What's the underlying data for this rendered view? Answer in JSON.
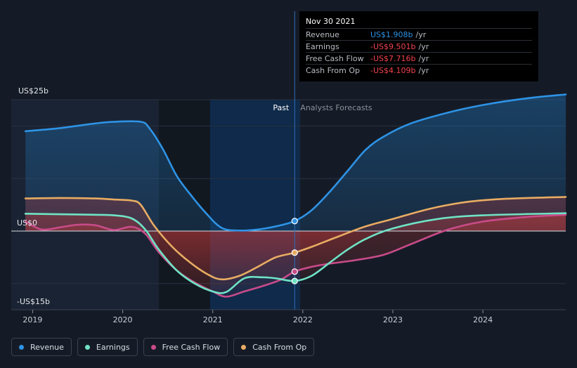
{
  "chart_data": {
    "type": "line",
    "y_axis": {
      "top_label": "US$25b",
      "zero_label": "US$0",
      "bottom_label": "-US$15b",
      "ylim": [
        -15,
        25
      ]
    },
    "x_ticks": [
      "2019",
      "2020",
      "2021",
      "2022",
      "2023",
      "2024"
    ],
    "period_labels": {
      "past": "Past",
      "forecast": "Analysts Forecasts"
    },
    "forecast_start": 2021.91,
    "series": [
      {
        "name": "Revenue",
        "color": "#2e93e5",
        "points": [
          [
            2018.92,
            19.0
          ],
          [
            2019.3,
            19.6
          ],
          [
            2019.7,
            20.5
          ],
          [
            2019.9,
            20.8
          ],
          [
            2020.2,
            20.8
          ],
          [
            2020.3,
            19.5
          ],
          [
            2020.45,
            15.5
          ],
          [
            2020.6,
            10.5
          ],
          [
            2020.75,
            7.0
          ],
          [
            2020.92,
            3.5
          ],
          [
            2021.1,
            0.6
          ],
          [
            2021.3,
            0.1
          ],
          [
            2021.5,
            0.3
          ],
          [
            2021.7,
            0.9
          ],
          [
            2021.91,
            1.908
          ],
          [
            2022.1,
            4.0
          ],
          [
            2022.3,
            7.5
          ],
          [
            2022.5,
            11.5
          ],
          [
            2022.7,
            15.5
          ],
          [
            2022.9,
            18.0
          ],
          [
            2023.2,
            20.5
          ],
          [
            2023.6,
            22.5
          ],
          [
            2024.0,
            24.0
          ],
          [
            2024.5,
            25.3
          ],
          [
            2024.92,
            26.0
          ]
        ]
      },
      {
        "name": "Earnings",
        "color": "#6fe3c5",
        "points": [
          [
            2018.92,
            3.3
          ],
          [
            2019.3,
            3.2
          ],
          [
            2019.7,
            3.1
          ],
          [
            2019.9,
            3.0
          ],
          [
            2020.1,
            2.4
          ],
          [
            2020.25,
            0.3
          ],
          [
            2020.4,
            -3.5
          ],
          [
            2020.6,
            -7.5
          ],
          [
            2020.8,
            -10.0
          ],
          [
            2021.0,
            -11.5
          ],
          [
            2021.15,
            -11.6
          ],
          [
            2021.35,
            -9.0
          ],
          [
            2021.55,
            -8.8
          ],
          [
            2021.7,
            -9.0
          ],
          [
            2021.91,
            -9.501
          ],
          [
            2022.1,
            -8.5
          ],
          [
            2022.3,
            -6.0
          ],
          [
            2022.5,
            -3.5
          ],
          [
            2022.7,
            -1.5
          ],
          [
            2023.0,
            0.5
          ],
          [
            2023.5,
            2.3
          ],
          [
            2024.0,
            3.0
          ],
          [
            2024.92,
            3.4
          ]
        ]
      },
      {
        "name": "Free Cash Flow",
        "color": "#c94b8a",
        "points": [
          [
            2018.92,
            1.8
          ],
          [
            2019.1,
            0.3
          ],
          [
            2019.3,
            0.7
          ],
          [
            2019.5,
            1.2
          ],
          [
            2019.7,
            1.1
          ],
          [
            2019.9,
            0.2
          ],
          [
            2020.1,
            0.8
          ],
          [
            2020.25,
            -0.5
          ],
          [
            2020.4,
            -4.0
          ],
          [
            2020.6,
            -7.5
          ],
          [
            2020.8,
            -9.8
          ],
          [
            2021.0,
            -11.5
          ],
          [
            2021.15,
            -12.5
          ],
          [
            2021.35,
            -11.5
          ],
          [
            2021.55,
            -10.5
          ],
          [
            2021.75,
            -9.3
          ],
          [
            2021.91,
            -7.716
          ],
          [
            2022.1,
            -6.8
          ],
          [
            2022.3,
            -6.2
          ],
          [
            2022.6,
            -5.5
          ],
          [
            2022.9,
            -4.5
          ],
          [
            2023.2,
            -2.5
          ],
          [
            2023.6,
            0.2
          ],
          [
            2024.0,
            1.8
          ],
          [
            2024.5,
            2.7
          ],
          [
            2024.92,
            3.1
          ]
        ]
      },
      {
        "name": "Cash From Op",
        "color": "#e8ac63",
        "points": [
          [
            2018.92,
            6.2
          ],
          [
            2019.3,
            6.3
          ],
          [
            2019.7,
            6.2
          ],
          [
            2019.9,
            6.0
          ],
          [
            2020.1,
            5.8
          ],
          [
            2020.2,
            5.0
          ],
          [
            2020.35,
            1.0
          ],
          [
            2020.55,
            -3.0
          ],
          [
            2020.75,
            -6.0
          ],
          [
            2020.95,
            -8.3
          ],
          [
            2021.1,
            -9.2
          ],
          [
            2021.3,
            -8.5
          ],
          [
            2021.5,
            -6.8
          ],
          [
            2021.7,
            -5.0
          ],
          [
            2021.91,
            -4.109
          ],
          [
            2022.1,
            -3.0
          ],
          [
            2022.4,
            -1.0
          ],
          [
            2022.7,
            0.9
          ],
          [
            2023.0,
            2.3
          ],
          [
            2023.4,
            4.2
          ],
          [
            2023.8,
            5.5
          ],
          [
            2024.2,
            6.1
          ],
          [
            2024.92,
            6.5
          ]
        ]
      }
    ]
  },
  "tooltip": {
    "date": "Nov 30 2021",
    "rows": [
      {
        "label": "Revenue",
        "value": "US$1.908b",
        "unit": "/yr",
        "color": "#2e93e5"
      },
      {
        "label": "Earnings",
        "value": "-US$9.501b",
        "unit": "/yr",
        "color": "#f0434c"
      },
      {
        "label": "Free Cash Flow",
        "value": "-US$7.716b",
        "unit": "/yr",
        "color": "#f0434c"
      },
      {
        "label": "Cash From Op",
        "value": "-US$4.109b",
        "unit": "/yr",
        "color": "#f0434c"
      }
    ]
  },
  "legend": [
    {
      "label": "Revenue",
      "color": "#2e93e5"
    },
    {
      "label": "Earnings",
      "color": "#6fe3c5"
    },
    {
      "label": "Free Cash Flow",
      "color": "#c94b8a"
    },
    {
      "label": "Cash From Op",
      "color": "#e8ac63"
    }
  ]
}
